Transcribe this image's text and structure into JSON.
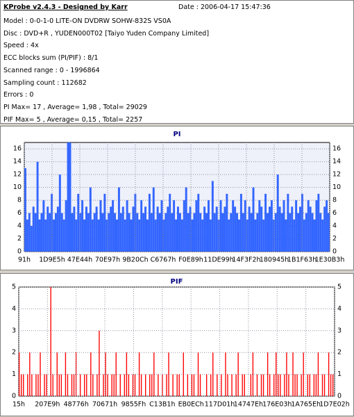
{
  "header": {
    "title": "KProbe v2.4.3 - Designed by Karr",
    "date": "Date : 2006-04-17 15:47:36",
    "lines": [
      "Model : 0-0-1-0 LITE-ON DVDRW SOHW-832S  VS0A",
      "Disc : DVD+R , YUDEN000T02 [Taiyo Yuden Company Limited]",
      "Speed : 4x",
      "ECC blocks sum (PI/PIF) : 8/1",
      "Scanned range : 0 - 1996864",
      "Sampling count : 112682",
      "Errors : 0",
      "PI Max= 17 , Average= 1,98 , Total= 29029",
      "PIF Max= 5 , Average= 0,15 , Total= 2257"
    ]
  },
  "chart_data": [
    {
      "type": "bar",
      "title": "PI",
      "color": "#3366ff",
      "background": "#eef0fa",
      "grid": true,
      "ylim": [
        0,
        17
      ],
      "yticks": [
        0,
        2,
        4,
        6,
        8,
        10,
        12,
        14,
        16
      ],
      "x_labels": [
        "91h",
        "1D9E5h",
        "47E44h",
        "70E97h",
        "9B20Ch",
        "C6767h",
        "F0E89h",
        "11DE99h",
        "14F3F2h",
        "180945h",
        "1B1F63h",
        "1E30B3h"
      ],
      "values": [
        13,
        5,
        6,
        4,
        7,
        6,
        14,
        5,
        6,
        8,
        5,
        7,
        6,
        9,
        5,
        6,
        7,
        12,
        6,
        5,
        8,
        17,
        17,
        6,
        7,
        5,
        9,
        6,
        8,
        5,
        7,
        6,
        10,
        5,
        6,
        7,
        5,
        8,
        6,
        9,
        5,
        6,
        7,
        8,
        6,
        5,
        10,
        6,
        7,
        5,
        8,
        6,
        5,
        7,
        9,
        6,
        5,
        8,
        6,
        7,
        5,
        9,
        6,
        10,
        5,
        7,
        6,
        8,
        5,
        6,
        7,
        9,
        6,
        8,
        5,
        7,
        6,
        5,
        8,
        10,
        6,
        7,
        5,
        6,
        8,
        9,
        6,
        5,
        7,
        6,
        8,
        5,
        11,
        6,
        7,
        5,
        8,
        6,
        7,
        9,
        5,
        6,
        8,
        7,
        6,
        5,
        9,
        6,
        8,
        5,
        7,
        6,
        10,
        5,
        6,
        8,
        7,
        5,
        9,
        6,
        7,
        8,
        5,
        6,
        12,
        7,
        6,
        8,
        5,
        9,
        6,
        7,
        5,
        8,
        6,
        7,
        9,
        5,
        6,
        8,
        7,
        6,
        5,
        8,
        9,
        6,
        5,
        7,
        8,
        6
      ]
    },
    {
      "type": "bar",
      "title": "PIF",
      "color": "#ff0000",
      "background": "#ffffff",
      "grid": true,
      "ylim": [
        0,
        5
      ],
      "yticks": [
        0,
        1,
        2,
        3,
        4,
        5
      ],
      "x_labels": [
        "15h",
        "207E9h",
        "48776h",
        "70671h",
        "9855Fh",
        "C13B1h",
        "EB0ECh",
        "117D01h",
        "14747Eh",
        "176E03h",
        "1A765Eh",
        "1D7E02h"
      ],
      "values": [
        2,
        1,
        1,
        0,
        1,
        2,
        1,
        0,
        1,
        1,
        2,
        0,
        1,
        1,
        0,
        5,
        1,
        0,
        2,
        1,
        1,
        0,
        2,
        1,
        0,
        1,
        1,
        2,
        0,
        1,
        0,
        1,
        1,
        0,
        2,
        1,
        0,
        1,
        3,
        0,
        1,
        2,
        1,
        0,
        1,
        1,
        2,
        0,
        1,
        0,
        1,
        2,
        1,
        0,
        1,
        1,
        0,
        2,
        1,
        0,
        1,
        0,
        1,
        1,
        2,
        0,
        1,
        0,
        1,
        0,
        1,
        2,
        0,
        1,
        0,
        1,
        1,
        0,
        2,
        0,
        1,
        0,
        1,
        1,
        0,
        2,
        1,
        0,
        0,
        1,
        0,
        1,
        2,
        0,
        1,
        0,
        1,
        0,
        2,
        1,
        0,
        1,
        0,
        1,
        2,
        0,
        1,
        1,
        0,
        0,
        1,
        2,
        0,
        1,
        0,
        1,
        1,
        0,
        2,
        1,
        0,
        1,
        2,
        1,
        1,
        0,
        1,
        2,
        1,
        0,
        2,
        1,
        1,
        0,
        1,
        2,
        0,
        1,
        1,
        0,
        1,
        1,
        2,
        0,
        1,
        1,
        0,
        2,
        1,
        1
      ]
    }
  ]
}
